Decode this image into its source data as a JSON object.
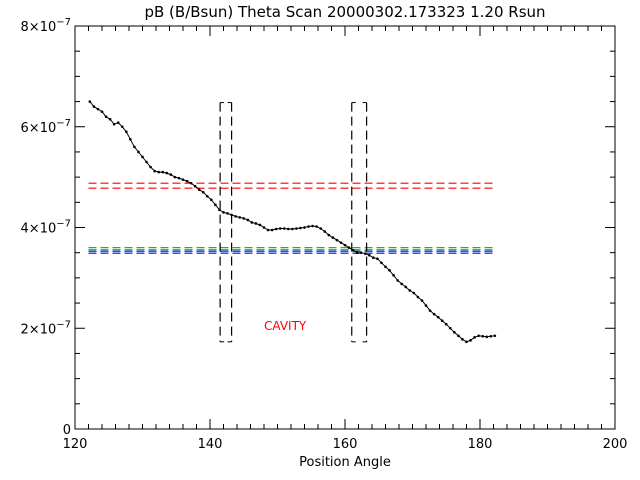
{
  "chart_data": {
    "type": "scatter",
    "title": "pB (B/Bsun) Theta Scan 20000302.173323 1.20 Rsun",
    "xlabel": "Position Angle",
    "ylabel": "",
    "xlim": [
      120,
      200
    ],
    "ylim": [
      0,
      8e-07
    ],
    "x_ticks": [
      120,
      140,
      160,
      180,
      200
    ],
    "x_tick_labels": [
      "120",
      "140",
      "160",
      "180",
      "200"
    ],
    "y_ticks": [
      0,
      2e-07,
      4e-07,
      6e-07,
      8e-07
    ],
    "y_tick_labels": [
      {
        "mant": "0",
        "exp": ""
      },
      {
        "mant": "2×10",
        "exp": "−7"
      },
      {
        "mant": "4×10",
        "exp": "−7"
      },
      {
        "mant": "6×10",
        "exp": "−7"
      },
      {
        "mant": "8×10",
        "exp": "−7"
      }
    ],
    "grid": false,
    "series": [
      {
        "color": "#000000",
        "style": "line+dots",
        "x": [
          122.2,
          122.8,
          123.4,
          124.0,
          124.6,
          125.2,
          125.8,
          126.4,
          127.0,
          127.6,
          128.2,
          128.8,
          129.4,
          130.0,
          130.6,
          131.2,
          131.8,
          132.4,
          133.0,
          133.6,
          134.2,
          134.8,
          135.4,
          136.0,
          136.6,
          137.2,
          137.8,
          138.4,
          139.0,
          139.6,
          140.2,
          140.8,
          141.4,
          142.0,
          142.6,
          143.2,
          143.8,
          144.4,
          145.0,
          145.6,
          146.2,
          146.8,
          147.4,
          148.0,
          148.6,
          149.2,
          149.8,
          150.4,
          151.0,
          151.6,
          152.2,
          152.8,
          153.4,
          154.0,
          154.6,
          155.2,
          155.8,
          156.4,
          157.0,
          157.6,
          158.2,
          158.8,
          159.4,
          160.0,
          160.6,
          161.2,
          161.8,
          162.4,
          163.0,
          163.6,
          164.2,
          164.8,
          165.4,
          166.0,
          166.6,
          167.2,
          167.8,
          168.4,
          169.0,
          169.6,
          170.2,
          170.8,
          171.4,
          172.0,
          172.6,
          173.2,
          173.8,
          174.4,
          175.0,
          175.6,
          176.2,
          176.8,
          177.4,
          178.0,
          178.6,
          179.2,
          179.8,
          180.4,
          181.0,
          181.6,
          182.2
        ],
        "y": [
          6.5e-07,
          6.4e-07,
          6.35e-07,
          6.3e-07,
          6.2e-07,
          6.15e-07,
          6.05e-07,
          6.08e-07,
          6e-07,
          5.9e-07,
          5.75e-07,
          5.6e-07,
          5.5e-07,
          5.4e-07,
          5.3e-07,
          5.2e-07,
          5.12e-07,
          5.1e-07,
          5.1e-07,
          5.08e-07,
          5.05e-07,
          5e-07,
          4.98e-07,
          4.95e-07,
          4.92e-07,
          4.88e-07,
          4.82e-07,
          4.75e-07,
          4.7e-07,
          4.62e-07,
          4.55e-07,
          4.45e-07,
          4.35e-07,
          4.3e-07,
          4.28e-07,
          4.25e-07,
          4.22e-07,
          4.2e-07,
          4.18e-07,
          4.15e-07,
          4.1e-07,
          4.08e-07,
          4.05e-07,
          4e-07,
          3.95e-07,
          3.95e-07,
          3.97e-07,
          3.98e-07,
          3.98e-07,
          3.97e-07,
          3.97e-07,
          3.98e-07,
          3.99e-07,
          4e-07,
          4.02e-07,
          4.03e-07,
          4.02e-07,
          3.98e-07,
          3.92e-07,
          3.85e-07,
          3.8e-07,
          3.75e-07,
          3.7e-07,
          3.65e-07,
          3.6e-07,
          3.55e-07,
          3.5e-07,
          3.5e-07,
          3.48e-07,
          3.45e-07,
          3.4e-07,
          3.38e-07,
          3.3e-07,
          3.22e-07,
          3.15e-07,
          3.05e-07,
          2.95e-07,
          2.88e-07,
          2.82e-07,
          2.75e-07,
          2.7e-07,
          2.62e-07,
          2.55e-07,
          2.45e-07,
          2.35e-07,
          2.28e-07,
          2.22e-07,
          2.15e-07,
          2.08e-07,
          2e-07,
          1.92e-07,
          1.85e-07,
          1.78e-07,
          1.73e-07,
          1.76e-07,
          1.82e-07,
          1.85e-07,
          1.84e-07,
          1.83e-07,
          1.84e-07,
          1.85e-07
        ]
      }
    ],
    "reference_lines": [
      {
        "color": "#ff0000",
        "y": [
          4.78e-07,
          4.88e-07
        ],
        "x": [
          122,
          182
        ],
        "style": "dashed"
      },
      {
        "color": "#00cc00",
        "y": [
          3.56e-07,
          3.6e-07
        ],
        "x": [
          122,
          182
        ],
        "style": "dashed"
      },
      {
        "color": "#0000ff",
        "y": [
          3.49e-07,
          3.53e-07
        ],
        "x": [
          122,
          182
        ],
        "style": "dashed"
      }
    ],
    "cavity_boxes": [
      {
        "x": [
          141.5,
          143.2
        ],
        "y": [
          1.73e-07,
          6.48e-07
        ],
        "color": "#000000"
      },
      {
        "x": [
          161.0,
          163.2
        ],
        "y": [
          1.73e-07,
          6.48e-07
        ],
        "color": "#000000"
      }
    ],
    "annotations": [
      {
        "text": "CAVITY",
        "x": 148,
        "y": 1.97e-07,
        "color": "#ff0000"
      }
    ]
  }
}
